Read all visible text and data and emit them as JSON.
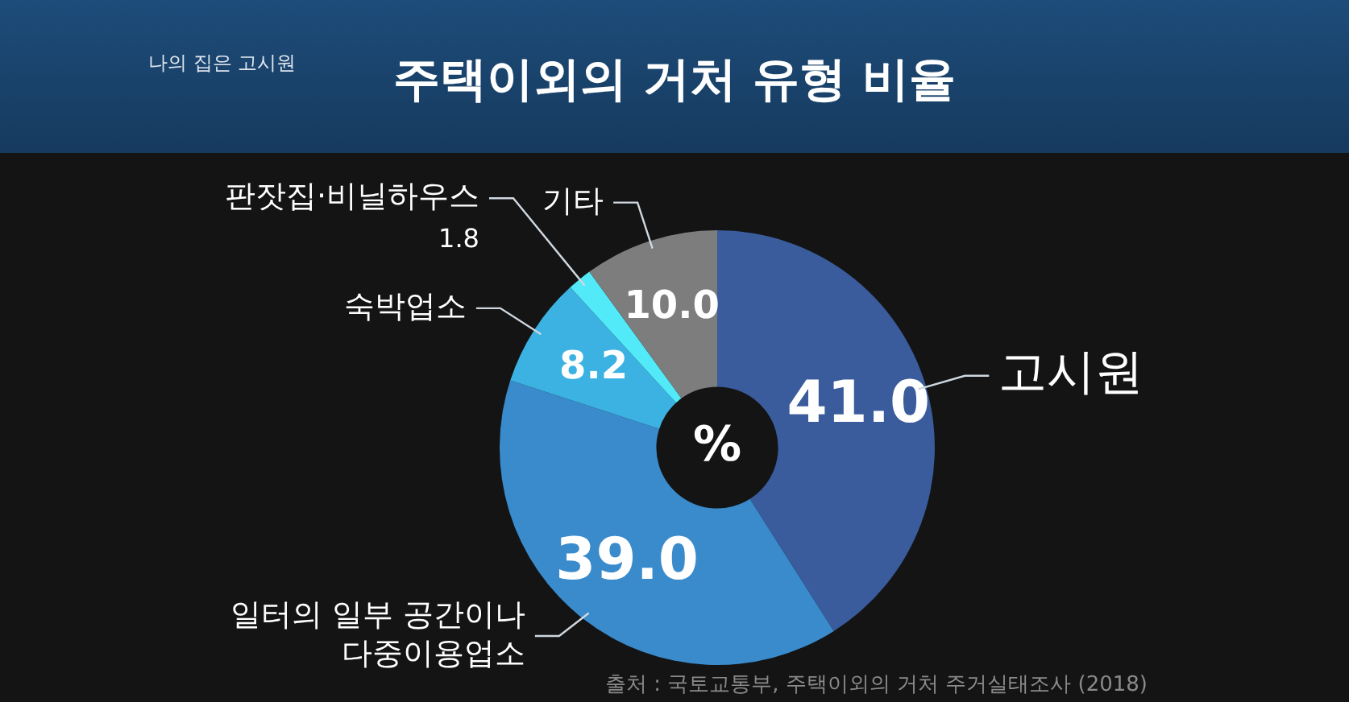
{
  "chart_data": {
    "type": "donut",
    "title": "주택이외의 거처 유형 비율",
    "categories": [
      "고시원",
      "일터의 일부 공간이나 다중이용업소",
      "숙박업소",
      "판잣집·비닐하우스",
      "기타"
    ],
    "values": [
      41.0,
      39.0,
      8.2,
      1.8,
      10.0
    ],
    "value_labels": [
      "41.0",
      "39.0",
      "8.2",
      "1.8",
      "10.0"
    ],
    "colors": [
      "#3a5b9c",
      "#3a8bcc",
      "#3cb2e2",
      "#52eaf8",
      "#7d7d7d"
    ],
    "legend": false,
    "annotations": [
      "%",
      "나의 집은 고시원",
      "출처 : 국토교통부, 주택이외의 거처 주거실태조사 (2018)"
    ]
  }
}
